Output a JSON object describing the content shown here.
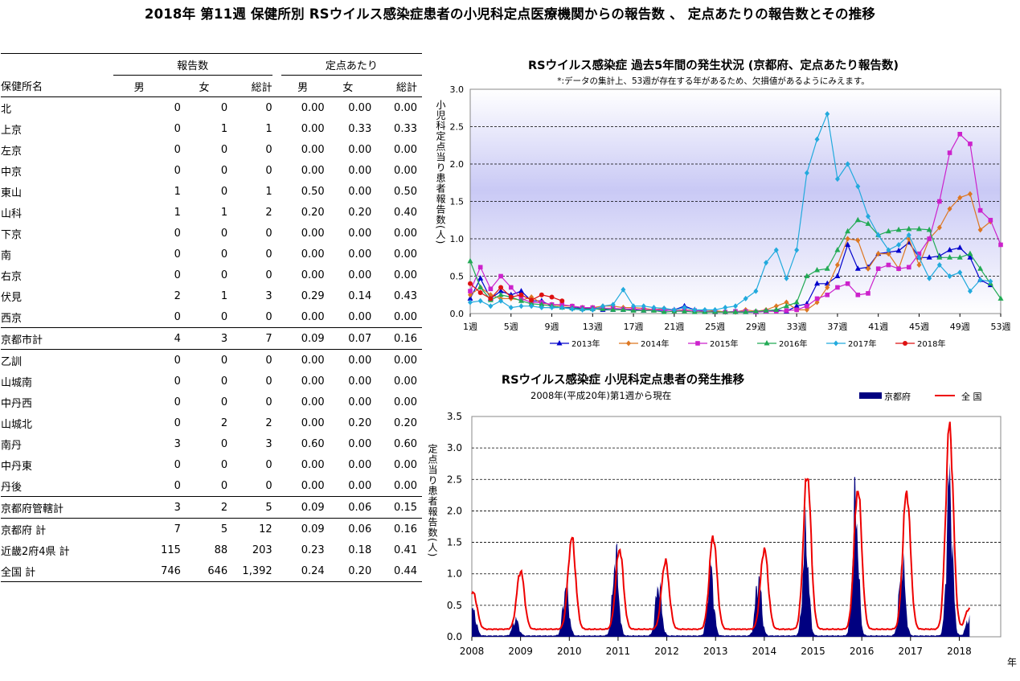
{
  "page_title": "2018年 第11週 保健所別 RSウイルス感染症患者の小児科定点医療機関からの報告数 、 定点あたりの報告数とその推移",
  "table": {
    "group_reports": "報告数",
    "group_per_sentinel": "定点あたり",
    "col_name": "保健所名",
    "col_male": "男",
    "col_female": "女",
    "col_total": "総計",
    "rows": [
      {
        "name": "北",
        "m": "0",
        "f": "0",
        "t": "0",
        "pm": "0.00",
        "pf": "0.00",
        "pt": "0.00",
        "style": "in"
      },
      {
        "name": "上京",
        "m": "0",
        "f": "1",
        "t": "1",
        "pm": "0.00",
        "pf": "0.33",
        "pt": "0.33",
        "style": "in"
      },
      {
        "name": "左京",
        "m": "0",
        "f": "0",
        "t": "0",
        "pm": "0.00",
        "pf": "0.00",
        "pt": "0.00",
        "style": "in"
      },
      {
        "name": "中京",
        "m": "0",
        "f": "0",
        "t": "0",
        "pm": "0.00",
        "pf": "0.00",
        "pt": "0.00",
        "style": "in"
      },
      {
        "name": "東山",
        "m": "1",
        "f": "0",
        "t": "1",
        "pm": "0.50",
        "pf": "0.00",
        "pt": "0.50",
        "style": "in"
      },
      {
        "name": "山科",
        "m": "1",
        "f": "1",
        "t": "2",
        "pm": "0.20",
        "pf": "0.20",
        "pt": "0.40",
        "style": "in"
      },
      {
        "name": "下京",
        "m": "0",
        "f": "0",
        "t": "0",
        "pm": "0.00",
        "pf": "0.00",
        "pt": "0.00",
        "style": "in"
      },
      {
        "name": "南",
        "m": "0",
        "f": "0",
        "t": "0",
        "pm": "0.00",
        "pf": "0.00",
        "pt": "0.00",
        "style": "in"
      },
      {
        "name": "右京",
        "m": "0",
        "f": "0",
        "t": "0",
        "pm": "0.00",
        "pf": "0.00",
        "pt": "0.00",
        "style": "in"
      },
      {
        "name": "伏見",
        "m": "2",
        "f": "1",
        "t": "3",
        "pm": "0.29",
        "pf": "0.14",
        "pt": "0.43",
        "style": "in"
      },
      {
        "name": "西京",
        "m": "0",
        "f": "0",
        "t": "0",
        "pm": "0.00",
        "pf": "0.00",
        "pt": "0.00",
        "style": "in"
      },
      {
        "name": "京都市計",
        "m": "4",
        "f": "3",
        "t": "7",
        "pm": "0.09",
        "pf": "0.07",
        "pt": "0.16",
        "style": "sub"
      },
      {
        "name": "乙訓",
        "m": "0",
        "f": "0",
        "t": "0",
        "pm": "0.00",
        "pf": "0.00",
        "pt": "0.00",
        "style": "in"
      },
      {
        "name": "山城南",
        "m": "0",
        "f": "0",
        "t": "0",
        "pm": "0.00",
        "pf": "0.00",
        "pt": "0.00",
        "style": "in"
      },
      {
        "name": "中丹西",
        "m": "0",
        "f": "0",
        "t": "0",
        "pm": "0.00",
        "pf": "0.00",
        "pt": "0.00",
        "style": "in"
      },
      {
        "name": "山城北",
        "m": "0",
        "f": "2",
        "t": "2",
        "pm": "0.00",
        "pf": "0.20",
        "pt": "0.20",
        "style": "in"
      },
      {
        "name": "南丹",
        "m": "3",
        "f": "0",
        "t": "3",
        "pm": "0.60",
        "pf": "0.00",
        "pt": "0.60",
        "style": "in"
      },
      {
        "name": "中丹東",
        "m": "0",
        "f": "0",
        "t": "0",
        "pm": "0.00",
        "pf": "0.00",
        "pt": "0.00",
        "style": "in"
      },
      {
        "name": "丹後",
        "m": "0",
        "f": "0",
        "t": "0",
        "pm": "0.00",
        "pf": "0.00",
        "pt": "0.00",
        "style": "in"
      },
      {
        "name": "京都府管轄計",
        "m": "3",
        "f": "2",
        "t": "5",
        "pm": "0.09",
        "pf": "0.06",
        "pt": "0.15",
        "style": "sub"
      },
      {
        "name": "京都府 計",
        "m": "7",
        "f": "5",
        "t": "12",
        "pm": "0.09",
        "pf": "0.06",
        "pt": "0.16",
        "style": "out"
      },
      {
        "name": "近畿2府4県 計",
        "m": "115",
        "f": "88",
        "t": "203",
        "pm": "0.23",
        "pf": "0.18",
        "pt": "0.41",
        "style": "out"
      },
      {
        "name": "全国 計",
        "m": "746",
        "f": "646",
        "t": "1,392",
        "pm": "0.24",
        "pf": "0.20",
        "pt": "0.44",
        "style": "last"
      }
    ]
  },
  "chart_data": [
    {
      "type": "line",
      "title": "RSウイルス感染症 過去5年間の発生状況 (京都府、定点あたり報告数)",
      "note": "*:データの集計上、53週が存在する年があるため、欠損値があるようにみえます。",
      "ylabel": "小児科定点当り患者報告数(人)",
      "ylim": [
        0,
        3.0
      ],
      "y_ticks": [
        "0.0",
        "0.5",
        "1.0",
        "1.5",
        "2.0",
        "2.5",
        "3.0"
      ],
      "x_ticks": [
        "1週",
        "5週",
        "9週",
        "13週",
        "17週",
        "21週",
        "25週",
        "29週",
        "33週",
        "37週",
        "41週",
        "45週",
        "49週",
        "53週"
      ],
      "x_range": [
        1,
        53
      ],
      "grid": "horizontal dashed",
      "legend_position": "bottom",
      "series": [
        {
          "name": "2013年",
          "color": "#0000cc",
          "marker": "triangle",
          "values": [
            0.2,
            0.47,
            0.2,
            0.3,
            0.25,
            0.3,
            0.17,
            0.17,
            0.1,
            0.08,
            0.08,
            0.07,
            0.07,
            0.05,
            0.05,
            0.05,
            0.05,
            0.04,
            0.05,
            0.04,
            0.05,
            0.1,
            0.05,
            0.03,
            0.03,
            0.02,
            0.02,
            0.02,
            0.02,
            0.03,
            0.05,
            0.03,
            0.1,
            0.13,
            0.4,
            0.4,
            0.5,
            0.92,
            0.6,
            0.62,
            0.8,
            0.82,
            0.84,
            0.95,
            0.75,
            0.75,
            0.77,
            0.85,
            0.88,
            0.75,
            0.45,
            0.38,
            null
          ]
        },
        {
          "name": "2014年",
          "color": "#dd7722",
          "marker": "diamond",
          "values": [
            0.25,
            0.35,
            0.25,
            0.2,
            0.2,
            0.18,
            0.22,
            0.14,
            0.12,
            0.1,
            0.1,
            0.08,
            0.08,
            0.1,
            0.1,
            0.08,
            0.08,
            0.07,
            0.05,
            0.07,
            0.04,
            0.05,
            0.04,
            0.03,
            0.04,
            0.02,
            0.02,
            0.05,
            0.03,
            0.05,
            0.1,
            0.15,
            0.05,
            0.05,
            0.15,
            0.35,
            0.65,
            1.0,
            0.98,
            0.6,
            0.8,
            0.8,
            0.6,
            1.0,
            0.65,
            1.0,
            1.15,
            1.4,
            1.55,
            1.6,
            1.12,
            1.23,
            null
          ]
        },
        {
          "name": "2015年",
          "color": "#cc22cc",
          "marker": "square",
          "values": [
            0.3,
            0.62,
            0.33,
            0.5,
            0.35,
            0.2,
            0.15,
            0.15,
            0.12,
            0.12,
            0.1,
            0.08,
            0.08,
            0.07,
            0.07,
            0.06,
            0.06,
            0.05,
            0.05,
            0.05,
            0.04,
            0.04,
            0.04,
            0.03,
            0.02,
            0.02,
            0.03,
            0.03,
            0.02,
            0.03,
            0.03,
            0.04,
            0.05,
            0.1,
            0.2,
            0.25,
            0.35,
            0.4,
            0.25,
            0.27,
            0.6,
            0.65,
            0.6,
            0.62,
            0.8,
            1.0,
            1.5,
            2.15,
            2.4,
            2.27,
            1.38,
            1.25,
            0.92
          ]
        },
        {
          "name": "2016年",
          "color": "#22aa55",
          "marker": "triangle",
          "values": [
            0.7,
            0.35,
            0.18,
            0.25,
            0.22,
            0.17,
            0.13,
            0.12,
            0.1,
            0.08,
            0.07,
            0.06,
            0.06,
            0.06,
            0.05,
            0.05,
            0.04,
            0.04,
            0.04,
            0.02,
            0.03,
            0.03,
            0.02,
            0.02,
            0.02,
            0.02,
            0.02,
            0.02,
            0.03,
            0.04,
            0.05,
            0.1,
            0.15,
            0.5,
            0.58,
            0.6,
            0.85,
            1.1,
            1.25,
            1.2,
            1.05,
            1.1,
            1.12,
            1.13,
            1.13,
            1.12,
            0.75,
            0.75,
            0.75,
            0.8,
            0.6,
            0.4,
            0.2
          ]
        },
        {
          "name": "2017年",
          "color": "#22aadd",
          "marker": "diamond",
          "values": [
            0.15,
            0.17,
            0.1,
            0.17,
            0.08,
            0.1,
            0.1,
            0.08,
            0.08,
            0.08,
            0.06,
            0.05,
            0.05,
            0.1,
            0.12,
            0.32,
            0.1,
            0.1,
            0.08,
            0.07,
            0.05,
            0.08,
            0.05,
            0.05,
            0.05,
            0.08,
            0.1,
            0.2,
            0.3,
            0.68,
            0.85,
            0.47,
            0.85,
            1.88,
            2.33,
            2.67,
            1.8,
            2.0,
            1.7,
            1.3,
            1.05,
            0.85,
            0.92,
            1.05,
            0.75,
            0.47,
            0.65,
            0.5,
            0.55,
            0.3,
            0.45,
            0.43,
            null
          ]
        },
        {
          "name": "2018年",
          "color": "#dd1111",
          "marker": "circle",
          "values": [
            0.4,
            0.28,
            0.2,
            0.35,
            0.22,
            0.25,
            0.18,
            0.25,
            0.22,
            0.17,
            null,
            null,
            null,
            null,
            null,
            null,
            null,
            null,
            null,
            null,
            null,
            null,
            null,
            null,
            null,
            null,
            null,
            null,
            null,
            null,
            null,
            null,
            null,
            null,
            null,
            null,
            null,
            null,
            null,
            null,
            null,
            null,
            null,
            null,
            null,
            null,
            null,
            null,
            null,
            null,
            null,
            null,
            null
          ]
        }
      ]
    },
    {
      "type": "area",
      "title": "RSウイルス感染症 小児科定点患者の発生推移",
      "subtitle": "2008年(平成20年)第1週から現在",
      "ylabel": "定点当り患者報告数(人)",
      "xlabel": "年",
      "ylim": [
        0,
        3.5
      ],
      "y_ticks": [
        "0.0",
        "0.5",
        "1.0",
        "1.5",
        "2.0",
        "2.5",
        "3.0",
        "3.5"
      ],
      "x_ticks": [
        "2008",
        "2009",
        "2010",
        "2011",
        "2012",
        "2013",
        "2014",
        "2015",
        "2016",
        "2017",
        "2018"
      ],
      "x_range": [
        2008.0,
        2018.85
      ],
      "grid": "horizontal dashed",
      "legend_position": "top-right",
      "series": [
        {
          "name": "京都府",
          "style": "filled area",
          "color": "#000080",
          "peaks": [
            [
              2008.03,
              0.42
            ],
            [
              2008.9,
              0.28
            ],
            [
              2009.93,
              0.8
            ],
            [
              2010.95,
              1.3
            ],
            [
              2011.83,
              0.85
            ],
            [
              2012.9,
              1.1
            ],
            [
              2013.88,
              0.95
            ],
            [
              2014.85,
              1.6
            ],
            [
              2015.87,
              2.15
            ],
            [
              2016.83,
              1.2
            ],
            [
              2017.8,
              2.45
            ],
            [
              2018.2,
              0.3
            ]
          ]
        },
        {
          "name": "全 国",
          "style": "line",
          "color": "#ee0000",
          "peaks": [
            [
              2008.03,
              0.7
            ],
            [
              2009.0,
              1.05
            ],
            [
              2010.05,
              1.57
            ],
            [
              2011.03,
              1.4
            ],
            [
              2011.97,
              1.2
            ],
            [
              2012.95,
              1.6
            ],
            [
              2014.0,
              1.4
            ],
            [
              2014.88,
              2.6
            ],
            [
              2015.92,
              2.36
            ],
            [
              2016.92,
              2.32
            ],
            [
              2017.8,
              3.35
            ],
            [
              2018.2,
              0.45
            ]
          ]
        }
      ]
    }
  ]
}
